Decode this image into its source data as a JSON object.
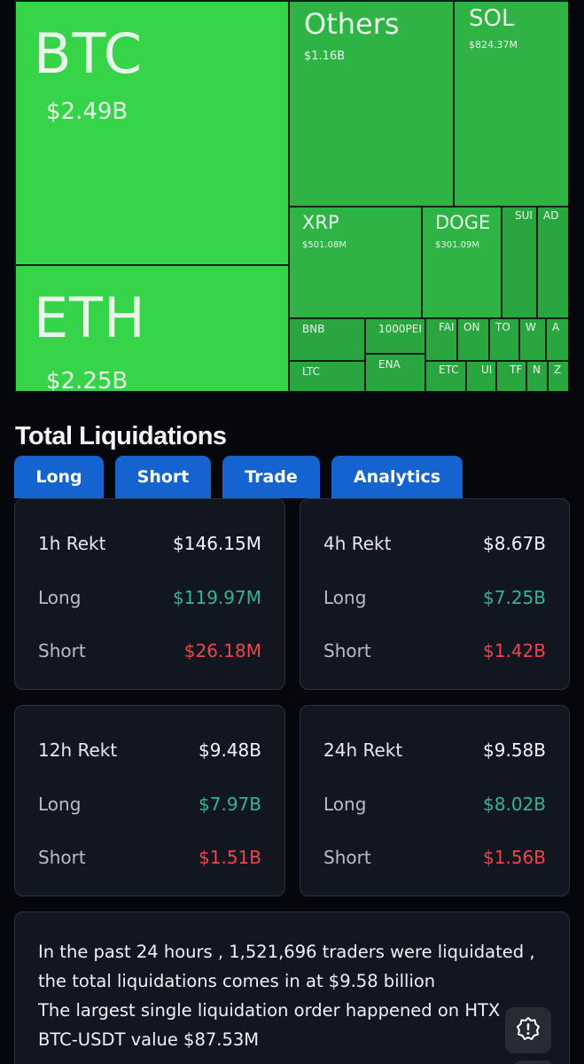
{
  "treemap": {
    "btc": {
      "symbol": "BTC",
      "value": "$2.49B"
    },
    "eth": {
      "symbol": "ETH",
      "value": "$2.25B"
    },
    "others": {
      "symbol": "Others",
      "value": "$1.16B"
    },
    "sol": {
      "symbol": "SOL",
      "value": "$824.37M"
    },
    "xrp": {
      "symbol": "XRP",
      "value": "$501.08M"
    },
    "doge": {
      "symbol": "DOGE",
      "value": "$301.09M"
    },
    "sui": {
      "symbol": "SUI"
    },
    "ada": {
      "symbol": "AD"
    },
    "bnb": {
      "symbol": "BNB"
    },
    "pepe": {
      "symbol": "1000PEI"
    },
    "fa": {
      "symbol": "FAI"
    },
    "on": {
      "symbol": "ON"
    },
    "to": {
      "symbol": "TO"
    },
    "w": {
      "symbol": "W"
    },
    "a": {
      "symbol": "A"
    },
    "ltc": {
      "symbol": "LTC"
    },
    "ena": {
      "symbol": "ENA"
    },
    "etc": {
      "symbol": "ETC"
    },
    "u": {
      "symbol": "UI"
    },
    "tr": {
      "symbol": "TF"
    },
    "n": {
      "symbol": "N"
    },
    "z": {
      "symbol": "Z"
    }
  },
  "title": "Total Liquidations",
  "tabs": [
    "Long",
    "Short",
    "Trade",
    "Analytics"
  ],
  "cards": [
    {
      "head": "1h Rekt",
      "total": "$146.15M",
      "long_label": "Long",
      "long": "$119.97M",
      "short_label": "Short",
      "short": "$26.18M"
    },
    {
      "head": "4h Rekt",
      "total": "$8.67B",
      "long_label": "Long",
      "long": "$7.25B",
      "short_label": "Short",
      "short": "$1.42B"
    },
    {
      "head": "12h Rekt",
      "total": "$9.48B",
      "long_label": "Long",
      "long": "$7.97B",
      "short_label": "Short",
      "short": "$1.51B"
    },
    {
      "head": "24h Rekt",
      "total": "$9.58B",
      "long_label": "Long",
      "long": "$8.02B",
      "short_label": "Short",
      "short": "$1.56B"
    }
  ],
  "info": {
    "line1": "In the past 24 hours , 1,521,696 traders were liquidated ,",
    "line2": "the total liquidations comes in at $9.58 billion",
    "line3": "The largest single liquidation order happened on HTX -",
    "line4": "BTC-USDT value $87.53M"
  },
  "colors": {
    "accent": "#1463cf",
    "treemap_green": "#36d449",
    "long": "#2fb597",
    "short": "#f0444a",
    "card_bg": "#111620"
  },
  "icons": {
    "fab": "alert-badge-icon"
  }
}
